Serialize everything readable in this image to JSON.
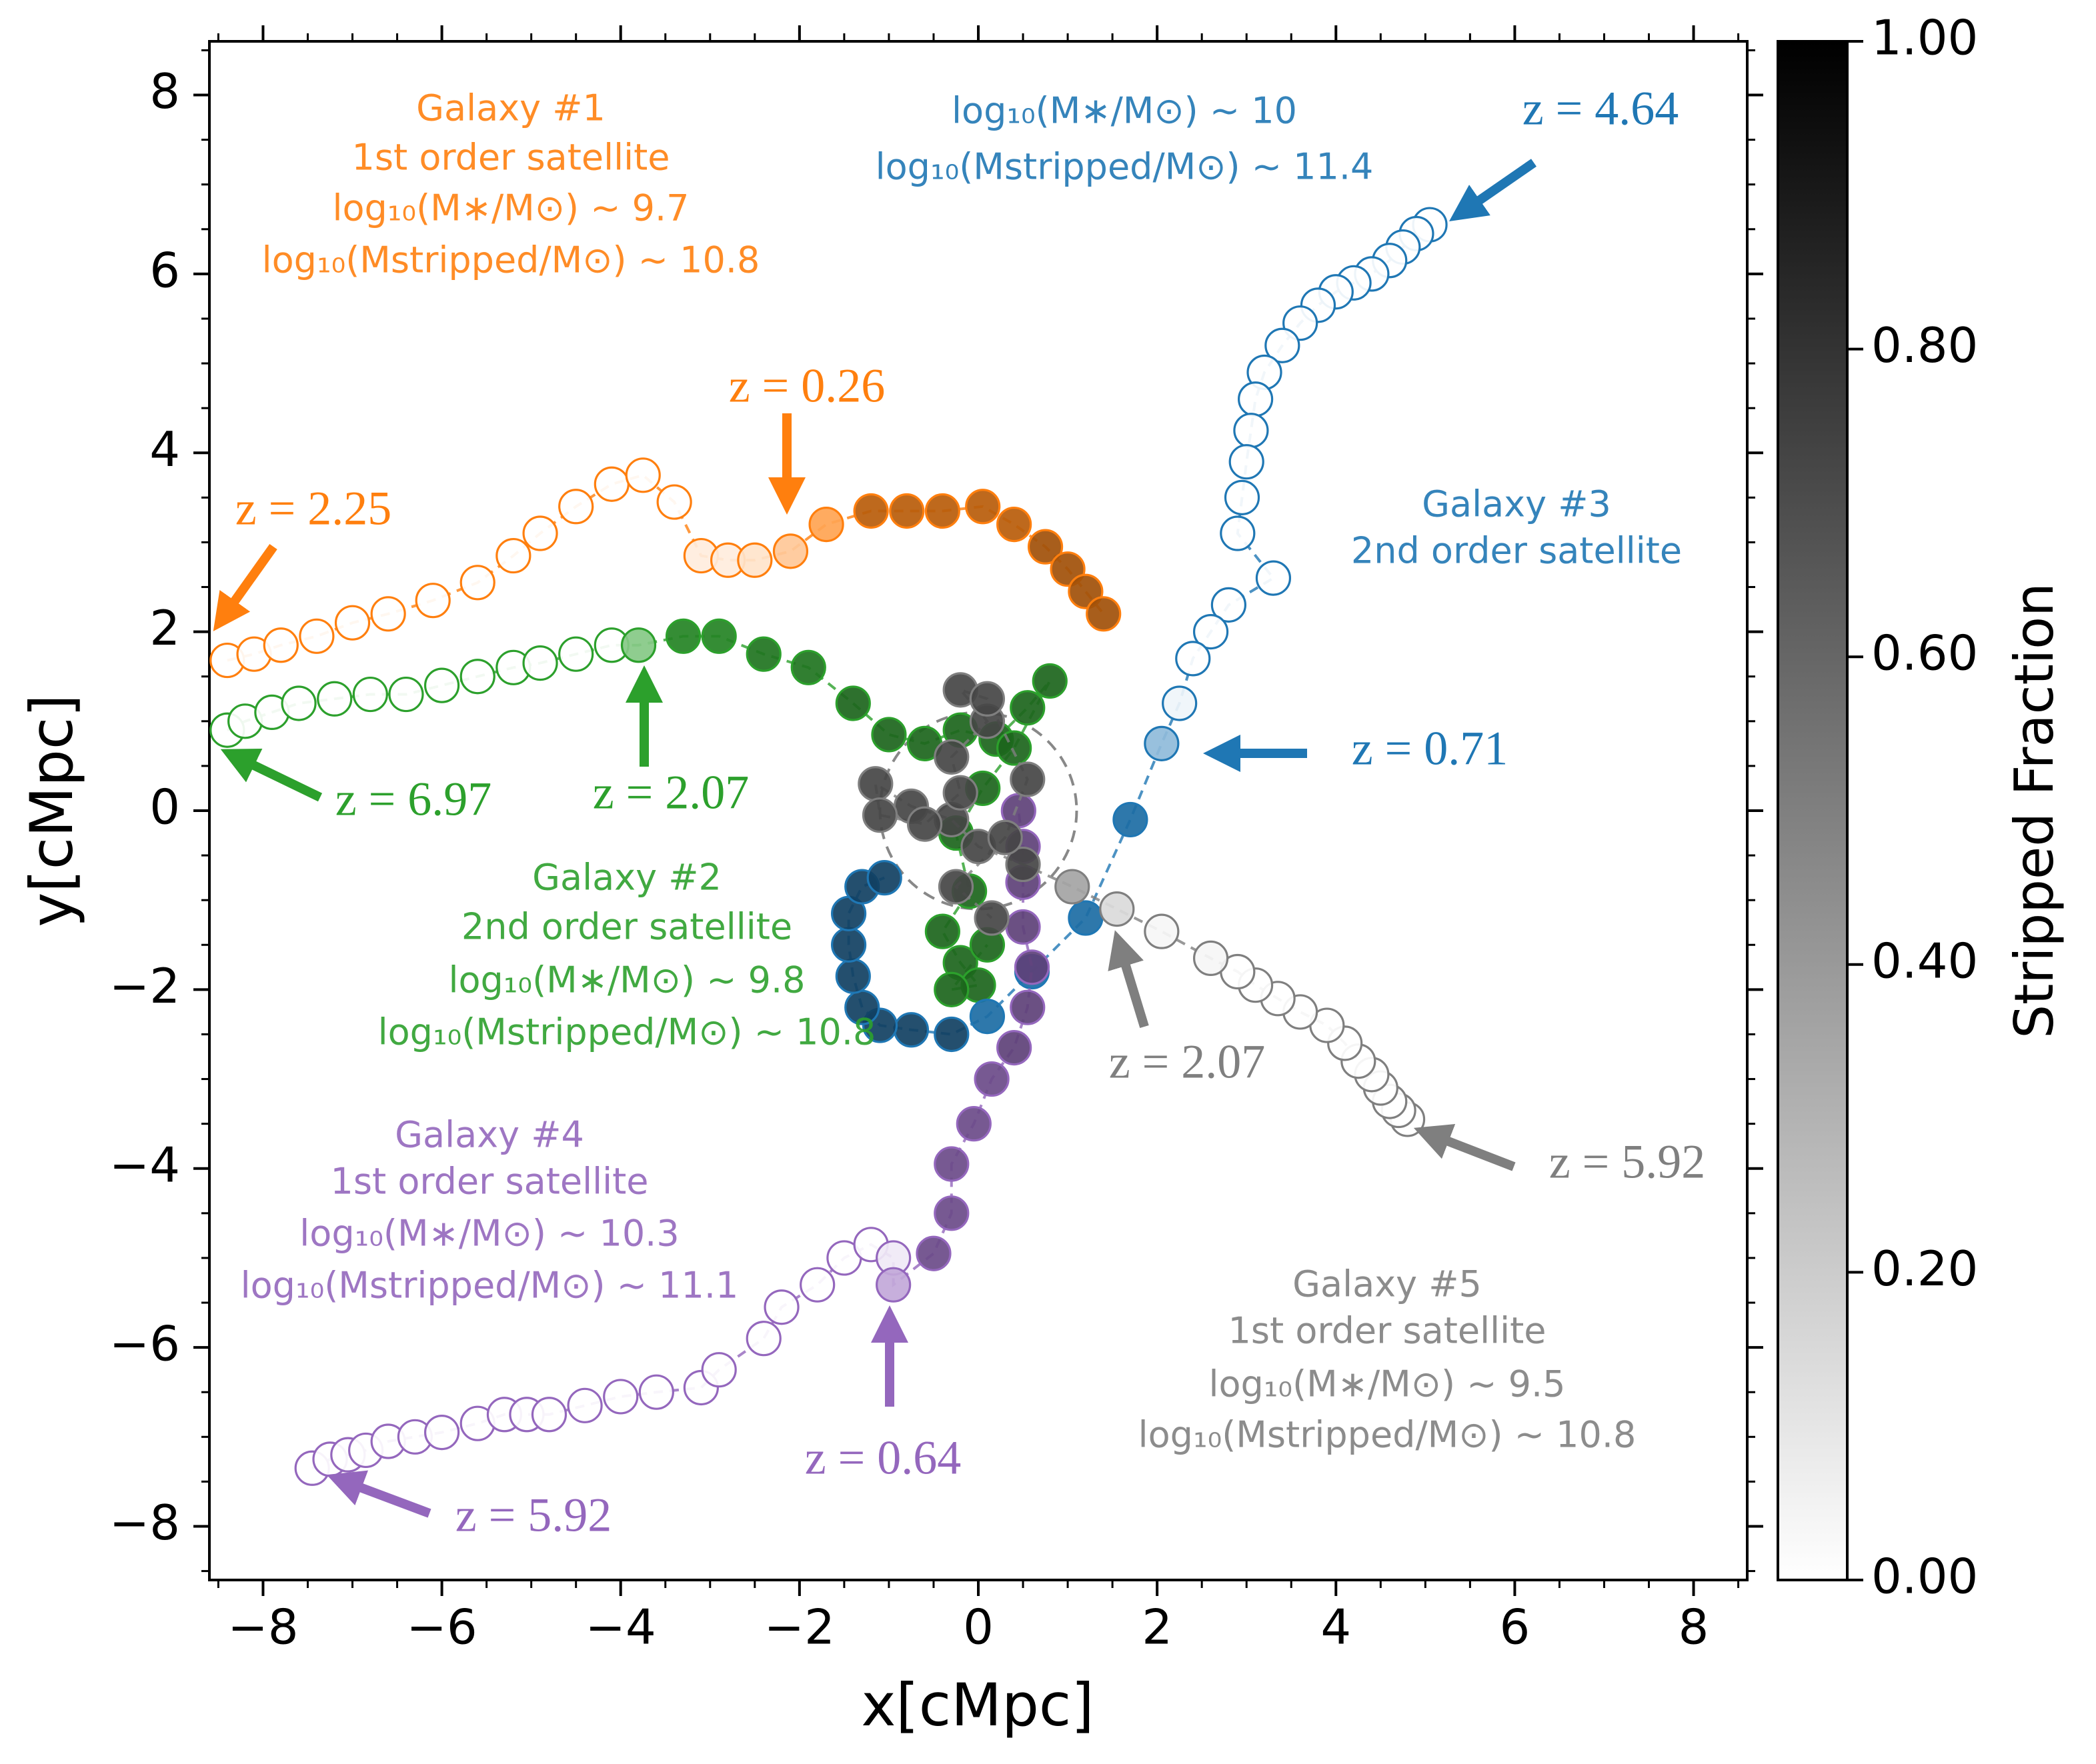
{
  "chart_data": {
    "type": "scatter",
    "xlabel": "x[cMpc]",
    "ylabel": "y[cMpc]",
    "xlim": [
      -8.6,
      8.6
    ],
    "ylim": [
      -8.6,
      8.6
    ],
    "xticks": [
      {
        "value": -8,
        "label": "−8"
      },
      {
        "value": -6,
        "label": "−6"
      },
      {
        "value": -4,
        "label": "−4"
      },
      {
        "value": -2,
        "label": "−2"
      },
      0,
      2,
      4,
      6,
      8
    ],
    "yticks": [
      {
        "value": -8,
        "label": "−8"
      },
      {
        "value": -6,
        "label": "−6"
      },
      {
        "value": -4,
        "label": "−4"
      },
      {
        "value": -2,
        "label": "−2"
      },
      0,
      2,
      4,
      6,
      8
    ],
    "xminorticks": [
      -8.5,
      -8,
      -7.5,
      -7,
      -6.5,
      -6,
      -5.5,
      -5,
      -4.5,
      -4,
      -3.5,
      -3,
      -2.5,
      -2,
      -1.5,
      -1,
      -0.5,
      0,
      0.5,
      1,
      1.5,
      2,
      2.5,
      3,
      3.5,
      4,
      4.5,
      5,
      5.5,
      6,
      6.5,
      7,
      7.5,
      8,
      8.5
    ],
    "yminorticks": [
      -8.5,
      -8,
      -7.5,
      -7,
      -6.5,
      -6,
      -5.5,
      -5,
      -4.5,
      -4,
      -3.5,
      -3,
      -2.5,
      -2,
      -1.5,
      -1,
      -0.5,
      0,
      0.5,
      1,
      1.5,
      2,
      2.5,
      3,
      3.5,
      4,
      4.5,
      5,
      5.5,
      6,
      6.5,
      7,
      7.5,
      8,
      8.5
    ],
    "circle": {
      "x": 0,
      "y": 0,
      "r": 1.1
    },
    "colorbar": {
      "label": "Stripped Fraction",
      "colormap": "Greys",
      "clim": [
        0,
        1
      ],
      "ticks": [
        {
          "value": 0,
          "label": "0.00"
        },
        {
          "value": 0.2,
          "label": "0.20"
        },
        {
          "value": 0.4,
          "label": "0.40"
        },
        {
          "value": 0.6,
          "label": "0.60"
        },
        {
          "value": 0.8,
          "label": "0.80"
        },
        {
          "value": 1,
          "label": "1.00"
        }
      ]
    },
    "series": [
      {
        "color": "#ff7f0e",
        "label": [
          "Galaxy #1",
          "1st order satellite",
          "log₁₀(M∗/M⊙) ~ 9.7",
          "log₁₀(Mstripped/M⊙) ~ 10.8"
        ],
        "annotations": [
          "z = 2.25",
          "z = 0.26"
        ],
        "x": [
          -8.4,
          -8.1,
          -7.8,
          -7.4,
          -7.0,
          -6.6,
          -6.1,
          -5.6,
          -5.2,
          -4.9,
          -4.5,
          -4.1,
          -3.75,
          -3.4,
          -3.1,
          -2.8,
          -2.5,
          -2.1,
          -1.7,
          -1.2,
          -0.8,
          -0.4,
          0.05,
          0.4,
          0.75,
          1.0,
          1.2,
          1.4
        ],
        "y": [
          1.68,
          1.75,
          1.85,
          1.95,
          2.1,
          2.2,
          2.35,
          2.55,
          2.85,
          3.1,
          3.4,
          3.65,
          3.75,
          3.45,
          2.85,
          2.8,
          2.8,
          2.9,
          3.2,
          3.35,
          3.35,
          3.35,
          3.4,
          3.2,
          2.95,
          2.7,
          2.45,
          2.2
        ],
        "fractions": [
          0,
          0,
          0,
          0,
          0,
          0,
          0,
          0,
          0,
          0,
          0,
          0,
          0,
          0,
          0.1,
          0.1,
          0.15,
          0.3,
          0.5,
          0.85,
          0.85,
          0.85,
          0.85,
          0.85,
          0.9,
          0.9,
          0.9,
          0.9
        ]
      },
      {
        "color": "#2ca02c",
        "label": [
          "Galaxy #2",
          "2nd order satellite",
          "log₁₀(M∗/M⊙) ~ 9.8",
          "log₁₀(Mstripped/M⊙) ~ 10.8"
        ],
        "annotations": [
          "z = 6.97",
          "z = 2.07"
        ],
        "x": [
          -8.4,
          -8.2,
          -7.9,
          -7.6,
          -7.2,
          -6.8,
          -6.4,
          -6.0,
          -5.6,
          -5.2,
          -4.9,
          -4.5,
          -4.1,
          -3.8,
          -3.3,
          -2.9,
          -2.4,
          -1.9,
          -1.4,
          -1.0,
          -0.6,
          -0.2,
          0.2,
          0.55,
          0.8,
          0.4,
          0.05,
          -0.25,
          -0.1,
          -0.4,
          -0.2,
          0.0,
          -0.3,
          0.1
        ],
        "y": [
          0.9,
          1.0,
          1.1,
          1.2,
          1.25,
          1.3,
          1.3,
          1.4,
          1.5,
          1.6,
          1.65,
          1.75,
          1.85,
          1.85,
          1.95,
          1.95,
          1.75,
          1.6,
          1.2,
          0.85,
          0.75,
          0.9,
          0.8,
          1.15,
          1.45,
          0.7,
          0.25,
          -0.25,
          -0.9,
          -1.35,
          -1.7,
          -1.95,
          -2.0,
          -1.5
        ],
        "fractions": [
          0,
          0,
          0,
          0,
          0,
          0,
          0,
          0,
          0,
          0,
          0,
          0,
          0,
          0.4,
          0.8,
          0.8,
          0.85,
          0.85,
          0.9,
          0.9,
          0.9,
          0.9,
          0.9,
          0.9,
          0.9,
          0.9,
          0.9,
          0.9,
          0.9,
          0.9,
          0.9,
          0.9,
          0.9,
          0.9
        ]
      },
      {
        "color": "#1f77b4",
        "label": [
          "log₁₀(M∗/M⊙) ~ 10",
          "log₁₀(Mstripped/M⊙) ~ 11.4",
          "Galaxy #3",
          "2nd order satellite"
        ],
        "annotations": [
          "z = 4.64",
          "z = 0.71"
        ],
        "x": [
          5.05,
          4.9,
          4.75,
          4.6,
          4.4,
          4.2,
          4.0,
          3.8,
          3.6,
          3.4,
          3.2,
          3.1,
          3.05,
          3.0,
          2.95,
          2.9,
          3.3,
          2.8,
          2.6,
          2.4,
          2.25,
          2.05,
          1.7,
          1.2,
          0.6,
          0.1,
          -0.3,
          -0.75,
          -1.1,
          -1.3,
          -1.4,
          -1.45,
          -1.45,
          -1.3,
          -1.05
        ],
        "y": [
          6.55,
          6.45,
          6.3,
          6.15,
          6.0,
          5.9,
          5.8,
          5.65,
          5.45,
          5.2,
          4.9,
          4.6,
          4.25,
          3.9,
          3.5,
          3.1,
          2.6,
          2.3,
          2.0,
          1.7,
          1.2,
          0.75,
          -0.1,
          -1.2,
          -1.8,
          -2.3,
          -2.5,
          -2.45,
          -2.4,
          -2.2,
          -1.85,
          -1.5,
          -1.15,
          -0.85,
          -0.75
        ],
        "fractions": [
          0,
          0,
          0,
          0,
          0,
          0,
          0,
          0,
          0,
          0,
          0,
          0,
          0,
          0,
          0,
          0,
          0,
          0,
          0,
          0,
          0.05,
          0.35,
          0.75,
          0.75,
          0.75,
          0.75,
          0.95,
          0.95,
          0.95,
          0.95,
          0.95,
          0.95,
          0.95,
          0.95,
          0.95
        ]
      },
      {
        "color": "#9467bd",
        "label": [
          "Galaxy #4",
          "1st order satellite",
          "log₁₀(M∗/M⊙) ~ 10.3",
          "log₁₀(Mstripped/M⊙) ~ 11.1"
        ],
        "annotations": [
          "z = 5.92",
          "z = 0.64"
        ],
        "x": [
          -7.45,
          -7.25,
          -7.05,
          -6.85,
          -6.6,
          -6.3,
          -6.0,
          -5.6,
          -5.3,
          -5.05,
          -4.8,
          -4.4,
          -4.0,
          -3.6,
          -3.1,
          -2.9,
          -2.4,
          -2.2,
          -1.8,
          -1.5,
          -1.2,
          -0.95,
          -0.95,
          -0.5,
          -0.3,
          -0.3,
          -0.05,
          0.15,
          0.4,
          0.55,
          0.6,
          0.5,
          0.5,
          0.5,
          0.45
        ],
        "y": [
          -7.35,
          -7.25,
          -7.2,
          -7.15,
          -7.05,
          -7.0,
          -6.95,
          -6.85,
          -6.75,
          -6.75,
          -6.75,
          -6.65,
          -6.55,
          -6.5,
          -6.45,
          -6.25,
          -5.9,
          -5.55,
          -5.3,
          -5.0,
          -4.85,
          -5.0,
          -5.3,
          -4.95,
          -4.5,
          -3.95,
          -3.5,
          -3.0,
          -2.65,
          -2.2,
          -1.75,
          -1.3,
          -0.8,
          -0.4,
          0.0
        ],
        "fractions": [
          0,
          0,
          0,
          0,
          0,
          0,
          0,
          0,
          0,
          0,
          0,
          0,
          0,
          0,
          0,
          0,
          0,
          0,
          0,
          0,
          0,
          0.1,
          0.4,
          0.85,
          0.85,
          0.85,
          0.85,
          0.85,
          0.9,
          0.9,
          0.9,
          0.9,
          0.9,
          0.9,
          0.9
        ]
      },
      {
        "color": "#7f7f7f",
        "label": [
          "Galaxy #5",
          "1st order satellite",
          "log₁₀(M∗/M⊙) ~ 9.5",
          "log₁₀(Mstripped/M⊙) ~ 10.8"
        ],
        "annotations": [
          "z = 2.07",
          "z = 5.92"
        ],
        "x": [
          4.8,
          4.7,
          4.6,
          4.5,
          4.4,
          4.25,
          4.1,
          3.9,
          3.6,
          3.35,
          3.1,
          2.9,
          2.6,
          2.05,
          1.55,
          1.05,
          0.5,
          0.0,
          -0.3,
          -0.75,
          -1.15,
          -1.1,
          -0.6,
          -0.2,
          -0.3,
          0.1,
          -0.2,
          0.1,
          0.55,
          0.3,
          -0.25,
          0.15
        ],
        "y": [
          -3.45,
          -3.35,
          -3.25,
          -3.1,
          -2.95,
          -2.8,
          -2.6,
          -2.4,
          -2.25,
          -2.1,
          -1.95,
          -1.8,
          -1.65,
          -1.35,
          -1.1,
          -0.85,
          -0.6,
          -0.4,
          -0.1,
          0.05,
          0.3,
          -0.05,
          -0.15,
          0.2,
          0.6,
          1.0,
          1.35,
          1.25,
          0.35,
          -0.3,
          -0.85,
          -1.2
        ],
        "fractions": [
          0,
          0,
          0,
          0,
          0,
          0,
          0,
          0,
          0,
          0,
          0,
          0,
          0.05,
          0.05,
          0.2,
          0.5,
          0.95,
          0.95,
          0.95,
          0.95,
          0.95,
          0.95,
          0.95,
          0.95,
          0.95,
          0.95,
          0.95,
          0.95,
          0.95,
          0.95,
          0.95,
          0.95
        ]
      }
    ]
  }
}
